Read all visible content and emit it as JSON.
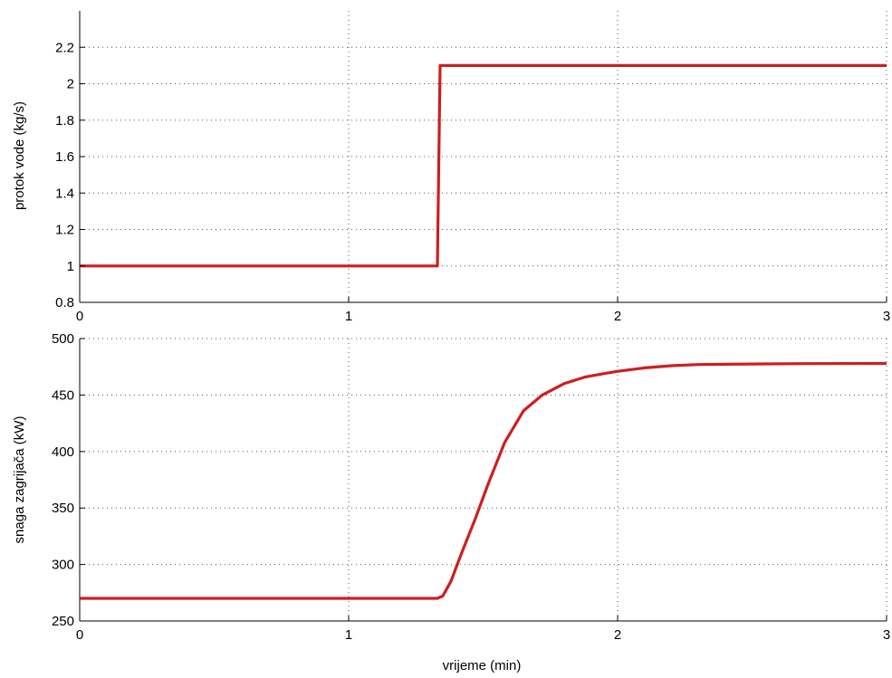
{
  "chart_data": [
    {
      "type": "line",
      "title": "",
      "xlabel": "",
      "ylabel": "protok vode (kg/s)",
      "xlim": [
        0,
        3
      ],
      "ylim": [
        0.8,
        2.4
      ],
      "xticks": [
        "0",
        "1",
        "2",
        "3"
      ],
      "yticks": [
        "0.8",
        "1",
        "1.2",
        "1.4",
        "1.6",
        "1.8",
        "2",
        "2.2"
      ],
      "grid": true,
      "series": [
        {
          "color": "#cc1f1f",
          "x": [
            0,
            1.33,
            1.34,
            3
          ],
          "y": [
            1.0,
            1.0,
            2.1,
            2.1
          ]
        }
      ]
    },
    {
      "type": "line",
      "title": "",
      "xlabel": "vrijeme (min)",
      "ylabel": "snaga zagrijača (kW)",
      "xlim": [
        0,
        3
      ],
      "ylim": [
        250,
        500
      ],
      "xticks": [
        "0",
        "1",
        "2",
        "3"
      ],
      "yticks": [
        "250",
        "300",
        "350",
        "400",
        "450",
        "500"
      ],
      "grid": true,
      "series": [
        {
          "color": "#cc1f1f",
          "x": [
            0,
            1.33,
            1.35,
            1.38,
            1.42,
            1.47,
            1.52,
            1.58,
            1.65,
            1.72,
            1.8,
            1.88,
            1.95,
            2.0,
            2.1,
            2.2,
            2.3,
            2.5,
            2.7,
            3.0
          ],
          "y": [
            270,
            270,
            272,
            285,
            310,
            340,
            372,
            408,
            436,
            450,
            460,
            466,
            469,
            471,
            474,
            476,
            477,
            477.5,
            477.8,
            478
          ]
        }
      ]
    }
  ]
}
